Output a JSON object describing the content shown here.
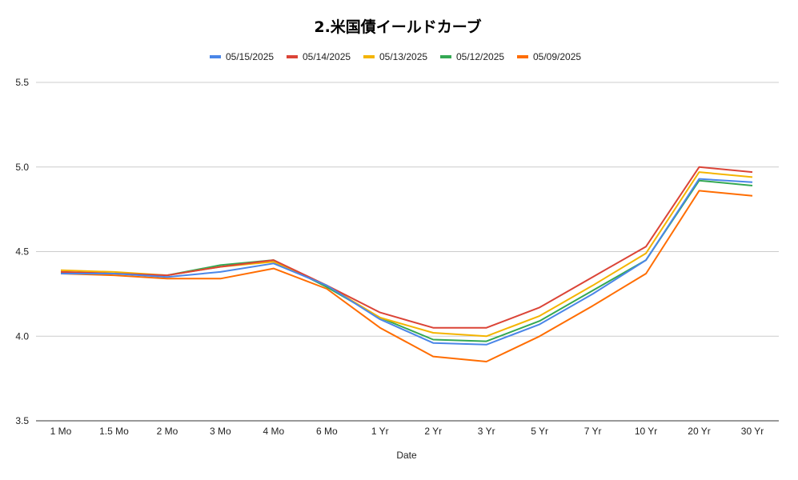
{
  "chart_data": {
    "type": "line",
    "title": "2.米国債イールドカーブ",
    "xlabel": "Date",
    "ylabel": "",
    "ylim": [
      3.5,
      5.5
    ],
    "yticks": [
      "3.5",
      "4.0",
      "4.5",
      "5.0",
      "5.5"
    ],
    "grid": true,
    "legend_position": "top",
    "categories": [
      "1 Mo",
      "1.5 Mo",
      "2 Mo",
      "3 Mo",
      "4 Mo",
      "6 Mo",
      "1 Yr",
      "2 Yr",
      "3 Yr",
      "5 Yr",
      "7 Yr",
      "10 Yr",
      "20 Yr",
      "30 Yr"
    ],
    "series": [
      {
        "name": "05/15/2025",
        "color": "#4a86e8",
        "values": [
          4.37,
          4.37,
          4.35,
          4.38,
          4.43,
          4.3,
          4.1,
          3.96,
          3.95,
          4.07,
          4.25,
          4.45,
          4.93,
          4.91
        ]
      },
      {
        "name": "05/14/2025",
        "color": "#db4437",
        "values": [
          4.38,
          4.37,
          4.36,
          4.41,
          4.45,
          4.3,
          4.14,
          4.05,
          4.05,
          4.17,
          4.35,
          4.53,
          5.0,
          4.97
        ]
      },
      {
        "name": "05/13/2025",
        "color": "#f4b400",
        "values": [
          4.39,
          4.38,
          4.36,
          4.41,
          4.44,
          4.3,
          4.11,
          4.02,
          4.0,
          4.12,
          4.3,
          4.49,
          4.97,
          4.94
        ]
      },
      {
        "name": "05/12/2025",
        "color": "#34a853",
        "values": [
          4.38,
          4.37,
          4.36,
          4.42,
          4.45,
          4.29,
          4.11,
          3.98,
          3.97,
          4.09,
          4.27,
          4.45,
          4.92,
          4.89
        ]
      },
      {
        "name": "05/09/2025",
        "color": "#ff6d01",
        "values": [
          4.37,
          4.36,
          4.34,
          4.34,
          4.4,
          4.28,
          4.05,
          3.88,
          3.85,
          4.0,
          4.18,
          4.37,
          4.86,
          4.83
        ]
      }
    ]
  }
}
